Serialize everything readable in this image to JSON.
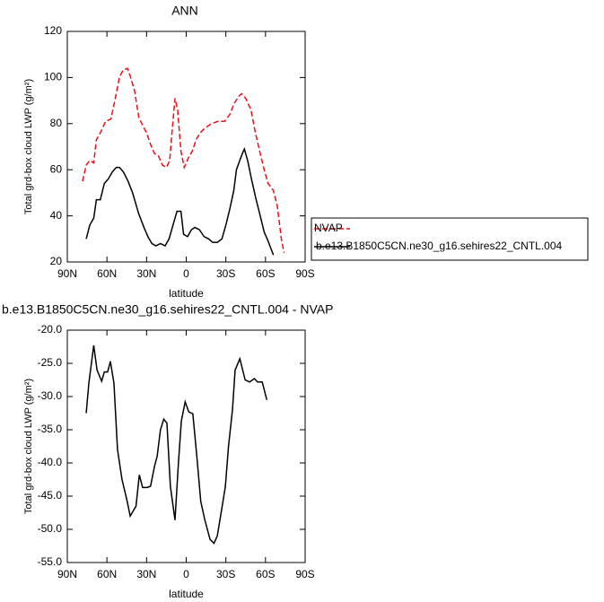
{
  "chart_data": [
    {
      "type": "line",
      "title": "ANN",
      "xlabel": "latitude",
      "ylabel": "Total grd-box cloud LWP (g/m²)",
      "xlim": [
        90,
        -90
      ],
      "ylim": [
        20,
        120
      ],
      "xticks": [
        {
          "value": 90,
          "label": "90N"
        },
        {
          "value": 60,
          "label": "60N"
        },
        {
          "value": 30,
          "label": "30N"
        },
        0,
        {
          "value": -30,
          "label": "30S"
        },
        {
          "value": -60,
          "label": "60S"
        },
        {
          "value": -90,
          "label": "90S"
        }
      ],
      "yticks": [
        20,
        40,
        60,
        80,
        100,
        120
      ],
      "legend": "right",
      "series": [
        {
          "name": "NVAP",
          "color": "#e8101c",
          "dash": true,
          "x": [
            78.5,
            75.7,
            73,
            70,
            68,
            65,
            61,
            57,
            54,
            50.6,
            48,
            44.5,
            42,
            39,
            36,
            33.6,
            30,
            27,
            24,
            21,
            18,
            15,
            12.5,
            10.5,
            8.5,
            6.5,
            4,
            1.5,
            -1.5,
            -4.5,
            -7.5,
            -10.5,
            -14,
            -19,
            -24,
            -29,
            -33,
            -36.5,
            -40,
            -42,
            -45,
            -49,
            -52,
            -56,
            -59,
            -62,
            -66,
            -69,
            -72,
            -74
          ],
          "values": [
            55,
            62,
            64,
            63,
            73,
            76,
            81,
            82,
            90,
            100,
            103,
            104,
            100,
            94,
            83,
            80,
            76,
            71,
            67,
            66,
            62,
            61,
            64,
            78,
            91,
            86,
            68,
            61,
            65,
            68,
            73,
            76,
            78,
            80,
            81,
            81,
            84,
            89,
            92,
            93,
            91,
            86,
            77,
            67,
            60,
            54,
            51,
            44,
            30,
            24
          ]
        },
        {
          "name": "b.e13.B1850C5CN.ne30_g16.sehires22_CNTL.004",
          "color": "#000000",
          "dash": false,
          "x": [
            75.7,
            73,
            70,
            68,
            65,
            62,
            59,
            56,
            53,
            50.5,
            47.5,
            44,
            40.6,
            36,
            32,
            29,
            26,
            23,
            19.5,
            16,
            13,
            10,
            7,
            4,
            2,
            -1,
            -4,
            -6.5,
            -10,
            -13.5,
            -17,
            -20,
            -23.5,
            -27,
            -30,
            -33,
            -36,
            -38,
            -40.5,
            -42.5,
            -44,
            -46.5,
            -49,
            -52.5,
            -56,
            -59,
            -62,
            -66
          ],
          "values": [
            30,
            36,
            39,
            47,
            47,
            54,
            56,
            59,
            61,
            61,
            59,
            55,
            50,
            41,
            35,
            31,
            28,
            27,
            28,
            27,
            30,
            36,
            42,
            42,
            32,
            31,
            34,
            35,
            34,
            31,
            30,
            28.5,
            28.5,
            30,
            36,
            43,
            51,
            60,
            64,
            67,
            69,
            64,
            57,
            48,
            40,
            33,
            29,
            23
          ]
        }
      ]
    },
    {
      "type": "line",
      "title": "b.e13.B1850C5CN.ne30_g16.sehires22_CNTL.004 - NVAP",
      "xlabel": "latitude",
      "ylabel": "Total grd-box cloud LWP (g/m²)",
      "xlim": [
        90,
        -90
      ],
      "ylim": [
        -55,
        -20
      ],
      "xticks": [
        {
          "value": 90,
          "label": "90N"
        },
        {
          "value": 60,
          "label": "60N"
        },
        {
          "value": 30,
          "label": "30N"
        },
        0,
        {
          "value": -30,
          "label": "30S"
        },
        {
          "value": -60,
          "label": "60S"
        },
        {
          "value": -90,
          "label": "90S"
        }
      ],
      "yticks": [
        {
          "value": -20,
          "label": "-20.0"
        },
        {
          "value": -25,
          "label": "-25.0"
        },
        {
          "value": -30,
          "label": "-30.0"
        },
        {
          "value": -35,
          "label": "-35.0"
        },
        {
          "value": -40,
          "label": "-40.0"
        },
        {
          "value": -45,
          "label": "-45.0"
        },
        {
          "value": -50,
          "label": "-50.0"
        },
        {
          "value": -55,
          "label": "-55.0"
        }
      ],
      "series": [
        {
          "color": "#000000",
          "dash": false,
          "x": [
            75.7,
            73.7,
            70,
            67.5,
            64,
            62,
            59.5,
            57.4,
            54.7,
            52,
            48.6,
            45,
            42.4,
            38,
            35.5,
            33,
            29.5,
            27,
            24,
            22,
            19.5,
            17,
            14.6,
            12,
            8.5,
            5.9,
            3.7,
            0.8,
            -1.9,
            -5,
            -8.3,
            -11,
            -14,
            -18,
            -21,
            -23.5,
            -26,
            -29.6,
            -32,
            -35,
            -37,
            -40.6,
            -44.6,
            -48,
            -51.6,
            -54,
            -57.5,
            -61
          ],
          "values": [
            -32.5,
            -28,
            -22.3,
            -26,
            -27.7,
            -26.3,
            -26.3,
            -24.7,
            -28,
            -38,
            -42.5,
            -45.5,
            -48,
            -46.5,
            -41.8,
            -43.7,
            -43.7,
            -43.5,
            -40.5,
            -39,
            -35,
            -33.4,
            -34,
            -43.5,
            -48.6,
            -40,
            -33.7,
            -30.8,
            -32.3,
            -32.6,
            -39.6,
            -45.8,
            -48.5,
            -51.5,
            -52.1,
            -51,
            -48,
            -43.6,
            -37.5,
            -32,
            -26,
            -24.3,
            -27.5,
            -27.8,
            -27.3,
            -27.8,
            -27.8,
            -30.5
          ]
        }
      ]
    }
  ]
}
